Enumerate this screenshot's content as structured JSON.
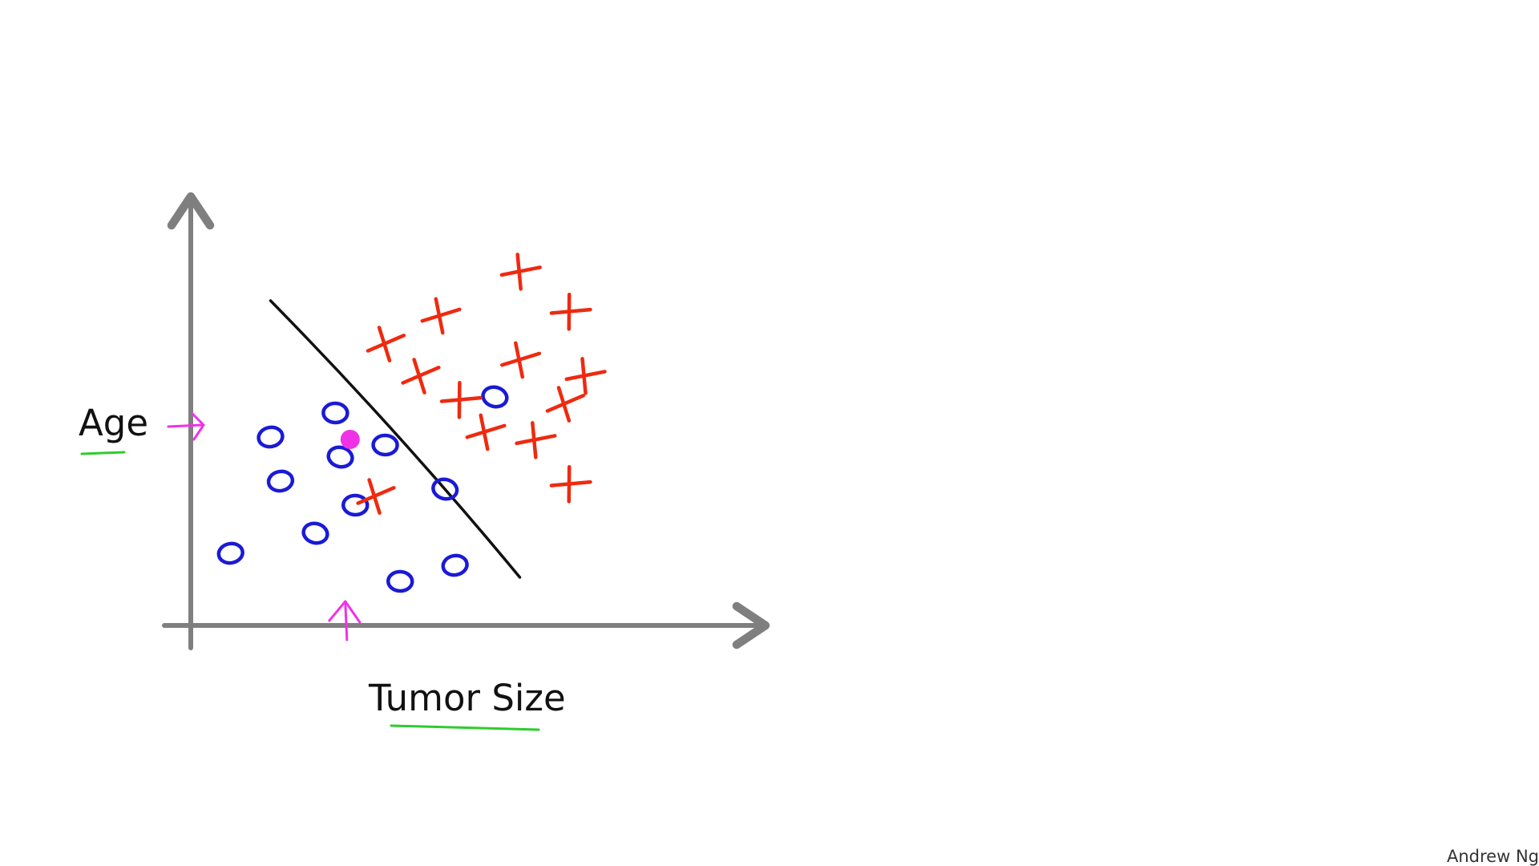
{
  "footer": {
    "credit": "Andrew Ng"
  },
  "colors": {
    "axis": "#7f7f7f",
    "benign_marker": "#1a1ad6",
    "malignant_marker": "#ee2a10",
    "boundary": "#111111",
    "query_point": "#f032e6",
    "label_underline": "#2ecc2e"
  },
  "chart_data": {
    "type": "scatter",
    "xlabel": "Tumor Size",
    "ylabel": "Age",
    "xlim": [
      0,
      10
    ],
    "ylim": [
      0,
      10
    ],
    "grid": false,
    "ticks": false,
    "series": [
      {
        "marker": "o",
        "color": "#1a1ad6",
        "points": [
          [
            1.6,
            4.7
          ],
          [
            2.9,
            5.3
          ],
          [
            3.0,
            4.2
          ],
          [
            1.8,
            3.6
          ],
          [
            3.3,
            3.0
          ],
          [
            2.5,
            2.3
          ],
          [
            0.8,
            1.8
          ],
          [
            4.2,
            1.1
          ],
          [
            5.1,
            3.4
          ],
          [
            5.3,
            1.5
          ],
          [
            3.9,
            4.5
          ],
          [
            6.1,
            5.7
          ]
        ]
      },
      {
        "marker": "x",
        "color": "#ee2a10",
        "points": [
          [
            3.9,
            7.0
          ],
          [
            5.0,
            7.7
          ],
          [
            6.6,
            8.8
          ],
          [
            7.6,
            7.8
          ],
          [
            4.6,
            6.2
          ],
          [
            6.6,
            6.6
          ],
          [
            7.9,
            6.2
          ],
          [
            5.4,
            5.6
          ],
          [
            7.5,
            5.5
          ],
          [
            5.9,
            4.8
          ],
          [
            6.9,
            4.6
          ],
          [
            7.6,
            3.5
          ],
          [
            3.7,
            3.2
          ]
        ]
      }
    ],
    "decision_boundary": [
      [
        1.6,
        8.1
      ],
      [
        6.6,
        1.2
      ]
    ],
    "query_point": [
      3.1,
      4.6
    ],
    "annotations": [
      {
        "type": "x-tick-arrow",
        "x": 3.1
      },
      {
        "type": "y-tick-arrow",
        "y": 5.0
      }
    ]
  }
}
